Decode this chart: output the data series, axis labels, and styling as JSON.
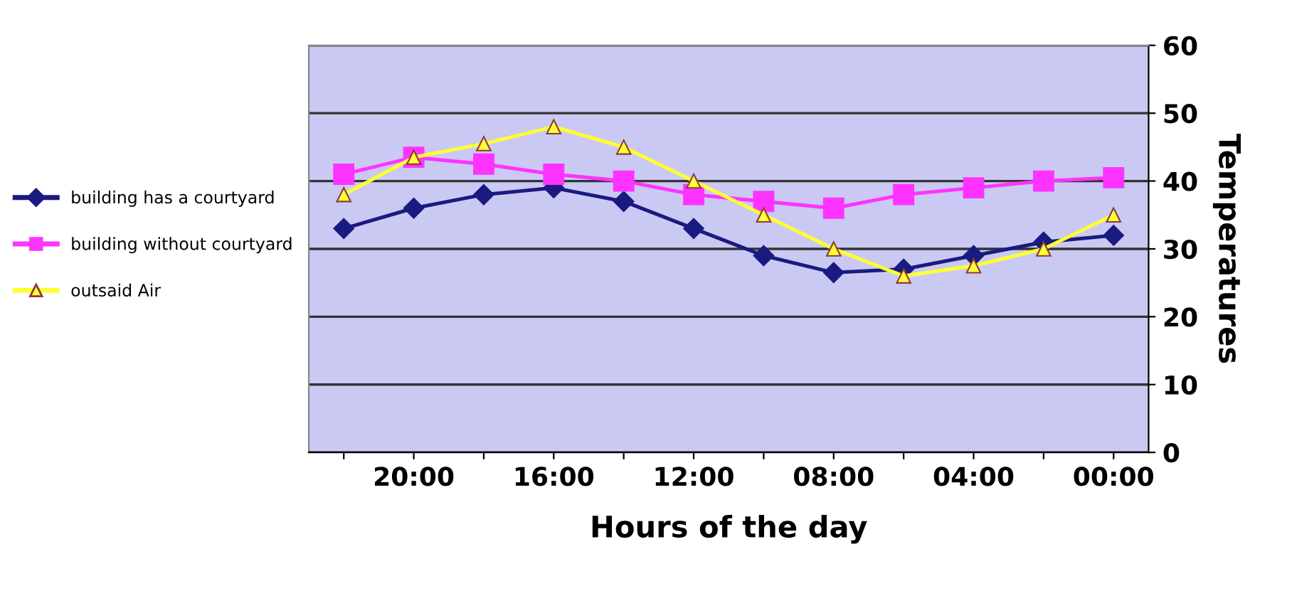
{
  "chart_data": {
    "type": "line",
    "xlabel": "Hours of the day",
    "ylabel": "Temperatures",
    "categories": [
      null,
      "20:00",
      null,
      "16:00",
      null,
      "12:00",
      null,
      "08:00",
      null,
      "04:00",
      null,
      "00:00"
    ],
    "series": [
      {
        "name": "building has a courtyard",
        "color": "#1a1a80",
        "marker": "diamond",
        "values": [
          33,
          36,
          38,
          39,
          37,
          33,
          29,
          26.5,
          27,
          29,
          31,
          32
        ]
      },
      {
        "name": "building without courtyard",
        "color": "#ff33ff",
        "marker": "square",
        "values": [
          41,
          43.5,
          42.5,
          41,
          40,
          38,
          37,
          36,
          38,
          39,
          40,
          40.5
        ]
      },
      {
        "name": "outsaid Air",
        "color": "#ffff33",
        "marker": "triangle",
        "values": [
          38,
          43.5,
          45.5,
          48,
          45,
          40,
          35,
          30,
          26,
          27.5,
          30,
          35
        ]
      }
    ],
    "ylim": [
      0,
      60
    ],
    "yticks": [
      0,
      10,
      20,
      30,
      40,
      50,
      60
    ],
    "grid": "y",
    "legend": "left"
  }
}
